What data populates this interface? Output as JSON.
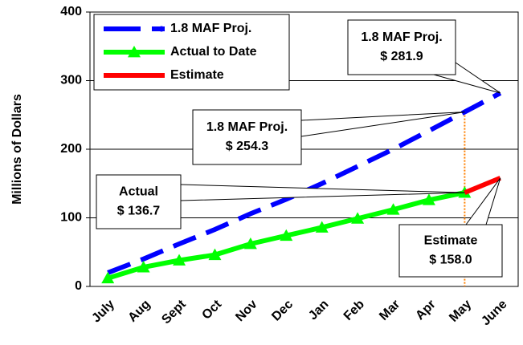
{
  "chart_data": {
    "type": "line",
    "y_label": "Millions of Dollars",
    "categories": [
      "July",
      "Aug",
      "Sept",
      "Oct",
      "Nov",
      "Dec",
      "Jan",
      "Feb",
      "Mar",
      "Apr",
      "May",
      "June"
    ],
    "series": [
      {
        "name": "1.8 MAF Proj.",
        "color": "#0000ff",
        "style": "dashed",
        "values": [
          20,
          40,
          62,
          83,
          106,
          127,
          150,
          175,
          200,
          227,
          254.3,
          281.9
        ]
      },
      {
        "name": "Actual to Date",
        "color": "#00ff00",
        "marker": "triangle",
        "values": [
          12,
          28,
          38,
          46,
          62,
          74,
          86,
          99,
          112,
          126,
          136.7,
          null
        ]
      },
      {
        "name": "Estimate",
        "color": "#ff0000",
        "values": [
          null,
          null,
          null,
          null,
          null,
          null,
          null,
          null,
          null,
          null,
          136.7,
          158.0
        ]
      }
    ],
    "ylim": [
      0,
      400
    ],
    "yticks": [
      0,
      100,
      200,
      300,
      400
    ],
    "grid": true,
    "legend": "upper left",
    "annotations": [
      {
        "lines": [
          "1.8 MAF Proj.",
          "$ 281.9"
        ]
      },
      {
        "lines": [
          "1.8 MAF Proj.",
          "$ 254.3"
        ]
      },
      {
        "lines": [
          "Actual",
          "$ 136.7"
        ]
      },
      {
        "lines": [
          "Estimate",
          "$ 158.0"
        ]
      }
    ]
  }
}
